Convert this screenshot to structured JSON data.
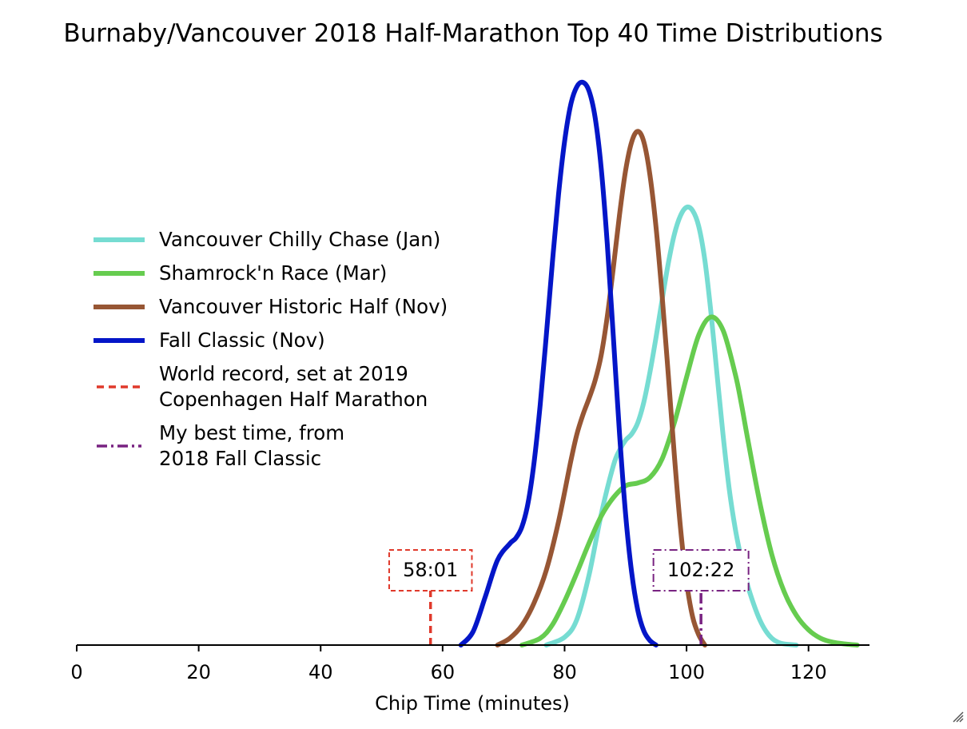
{
  "chart_data": {
    "type": "line",
    "title": "Burnaby/Vancouver 2018 Half-Marathon Top 40 Time Distributions",
    "xlabel": "Chip Time (minutes)",
    "ylabel": "",
    "xlim": [
      0,
      130
    ],
    "ylim": [
      0,
      1
    ],
    "x_ticks": [
      0,
      20,
      40,
      60,
      80,
      100,
      120
    ],
    "y_axis_visible": false,
    "grid": false,
    "legend_position": "left",
    "series": [
      {
        "name": "Vancouver Chilly Chase (Jan)",
        "color": "#76DCD2",
        "style": "solid",
        "x": [
          77,
          80,
          82,
          84,
          86,
          88,
          89,
          90,
          91,
          92,
          93,
          94,
          95,
          96,
          97,
          98,
          99,
          100,
          101,
          102,
          103,
          104,
          105,
          106,
          107,
          108,
          109,
          110,
          111,
          112,
          113,
          114,
          115,
          116,
          118
        ],
        "y": [
          0.0,
          0.014,
          0.045,
          0.124,
          0.232,
          0.319,
          0.346,
          0.364,
          0.375,
          0.395,
          0.432,
          0.485,
          0.547,
          0.614,
          0.678,
          0.73,
          0.763,
          0.778,
          0.772,
          0.744,
          0.684,
          0.591,
          0.481,
          0.372,
          0.277,
          0.206,
          0.152,
          0.107,
          0.073,
          0.045,
          0.025,
          0.012,
          0.005,
          0.002,
          0.0
        ]
      },
      {
        "name": "Shamrock'n Race (Mar)",
        "color": "#66CC4F",
        "style": "solid",
        "x": [
          73,
          76,
          78,
          80,
          82,
          84,
          86,
          88,
          90,
          92,
          94,
          96,
          98,
          100,
          102,
          104,
          106,
          108,
          109,
          110,
          112,
          114,
          116,
          118,
          120,
          122,
          124,
          126,
          128
        ],
        "y": [
          0.0,
          0.012,
          0.036,
          0.078,
          0.128,
          0.181,
          0.229,
          0.262,
          0.283,
          0.288,
          0.298,
          0.331,
          0.395,
          0.476,
          0.551,
          0.583,
          0.559,
          0.481,
          0.428,
          0.368,
          0.254,
          0.16,
          0.095,
          0.053,
          0.027,
          0.012,
          0.005,
          0.002,
          0.0
        ]
      },
      {
        "name": "Vancouver Historic Half (Nov)",
        "color": "#975634",
        "style": "solid",
        "x": [
          69,
          71,
          73,
          75,
          77,
          79,
          81,
          82,
          83,
          84,
          85,
          86,
          87,
          88,
          89,
          90,
          91,
          92,
          93,
          94,
          95,
          96,
          97,
          98,
          99,
          100,
          101,
          102,
          103
        ],
        "y": [
          0.0,
          0.012,
          0.035,
          0.075,
          0.133,
          0.219,
          0.326,
          0.374,
          0.409,
          0.438,
          0.47,
          0.515,
          0.584,
          0.671,
          0.764,
          0.843,
          0.894,
          0.913,
          0.894,
          0.835,
          0.742,
          0.62,
          0.481,
          0.337,
          0.209,
          0.112,
          0.05,
          0.018,
          0.0
        ]
      },
      {
        "name": "Fall Classic (Nov)",
        "color": "#0416C8",
        "style": "solid",
        "x": [
          63,
          65,
          67,
          69,
          71,
          72,
          73,
          74,
          75,
          76,
          77,
          78,
          79,
          80,
          81,
          82,
          83,
          84,
          85,
          86,
          87,
          88,
          89,
          90,
          91,
          92,
          93,
          94,
          95
        ],
        "y": [
          0.0,
          0.024,
          0.086,
          0.151,
          0.18,
          0.19,
          0.21,
          0.252,
          0.325,
          0.427,
          0.55,
          0.68,
          0.8,
          0.895,
          0.96,
          0.992,
          1.0,
          0.985,
          0.938,
          0.848,
          0.713,
          0.547,
          0.377,
          0.233,
          0.129,
          0.062,
          0.025,
          0.008,
          0.0
        ]
      },
      {
        "name": "World record, set at 2019\nCopenhagen Half Marathon",
        "color": "#E0392B",
        "style": "dashed",
        "x": [
          58.0167,
          58.0167
        ],
        "y": [
          0,
          0.098
        ]
      },
      {
        "name": "My best time, from\n2018 Fall Classic",
        "color": "#782281",
        "style": "dashdot",
        "x": [
          102.3667,
          102.3667
        ],
        "y": [
          0,
          0.098
        ]
      }
    ],
    "annotations": [
      {
        "text": "58:01",
        "x": 58.0167,
        "color": "#E0392B",
        "style": "dashed"
      },
      {
        "text": "102:22",
        "x": 102.3667,
        "color": "#782281",
        "style": "dashdot"
      }
    ]
  }
}
